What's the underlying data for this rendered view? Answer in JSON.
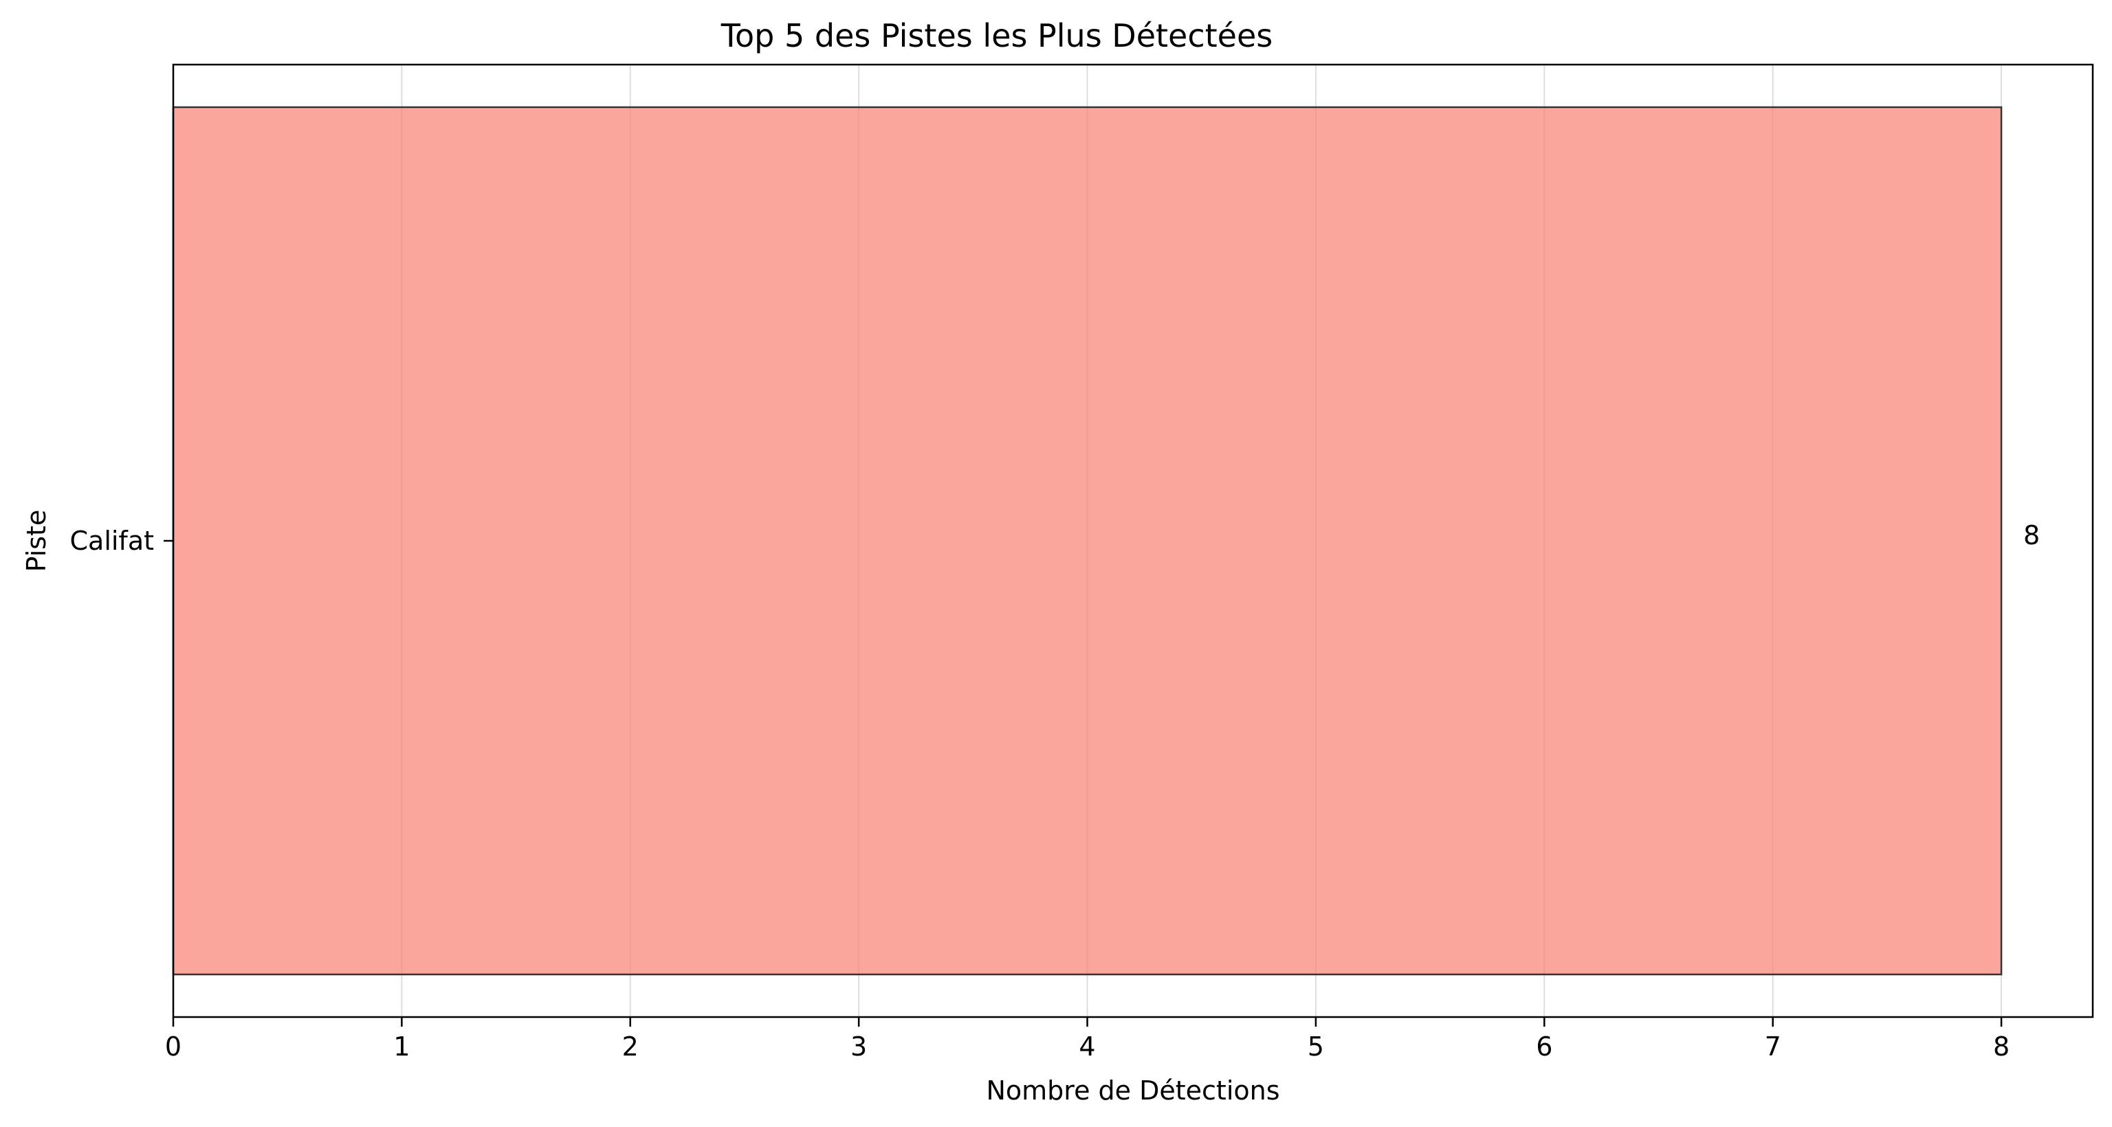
{
  "chart_data": {
    "type": "bar",
    "orientation": "horizontal",
    "title": "Top 5 des Pistes les Plus Détectées",
    "xlabel": "Nombre de Détections",
    "ylabel": "Piste",
    "categories": [
      "Califat"
    ],
    "values": [
      8
    ],
    "data_labels": [
      "8"
    ],
    "xlim": [
      0,
      8.4
    ],
    "xticks": [
      0,
      1,
      2,
      3,
      4,
      5,
      6,
      7,
      8
    ],
    "grid": true,
    "grid_axis": "x",
    "legend": "none",
    "bar_color": "#fa8072",
    "bar_edge_color": "#333333"
  }
}
